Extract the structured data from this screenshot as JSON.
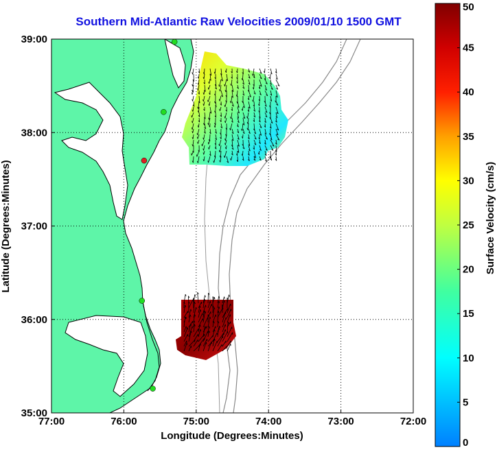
{
  "title": "Southern Mid-Atlantic Raw Velocities 2009/01/10 1500 GMT",
  "map": {
    "xlabel": "Longitude (Degrees:Minutes)",
    "ylabel": "Latitude (Degrees:Minutes)",
    "lon_range": [
      -77,
      -72
    ],
    "lat_range": [
      35,
      39
    ],
    "x_ticks": [
      {
        "value": -77,
        "label": "77:00"
      },
      {
        "value": -76,
        "label": "76:00"
      },
      {
        "value": -75,
        "label": "75:00"
      },
      {
        "value": -74,
        "label": "74:00"
      },
      {
        "value": -73,
        "label": "73:00"
      },
      {
        "value": -72,
        "label": "72:00"
      }
    ],
    "y_ticks": [
      {
        "value": 39,
        "label": "39:00"
      },
      {
        "value": 38,
        "label": "38:00"
      },
      {
        "value": 37,
        "label": "37:00"
      },
      {
        "value": 36,
        "label": "36:00"
      },
      {
        "value": 35,
        "label": "35:00"
      }
    ],
    "land_color": "#5ef5a8",
    "stations": [
      {
        "lon": -75.3,
        "lat": 38.97,
        "color": "#22dd22"
      },
      {
        "lon": -75.45,
        "lat": 38.22,
        "color": "#22dd22"
      },
      {
        "lon": -75.72,
        "lat": 37.7,
        "color": "#dd2222"
      },
      {
        "lon": -75.75,
        "lat": 36.2,
        "color": "#22dd22"
      },
      {
        "lon": -75.6,
        "lat": 35.26,
        "color": "#22dd22"
      }
    ]
  },
  "colorbar": {
    "label": "Surface Velocity (cm/s)",
    "min": 0,
    "max": 50,
    "ticks": [
      {
        "value": 0,
        "label": "0"
      },
      {
        "value": 5,
        "label": "5"
      },
      {
        "value": 10,
        "label": "10"
      },
      {
        "value": 15,
        "label": "15"
      },
      {
        "value": 20,
        "label": "20"
      },
      {
        "value": 25,
        "label": "25"
      },
      {
        "value": 30,
        "label": "30"
      },
      {
        "value": 35,
        "label": "35"
      },
      {
        "value": 40,
        "label": "40"
      },
      {
        "value": 45,
        "label": "45"
      },
      {
        "value": 50,
        "label": "50"
      }
    ]
  }
}
